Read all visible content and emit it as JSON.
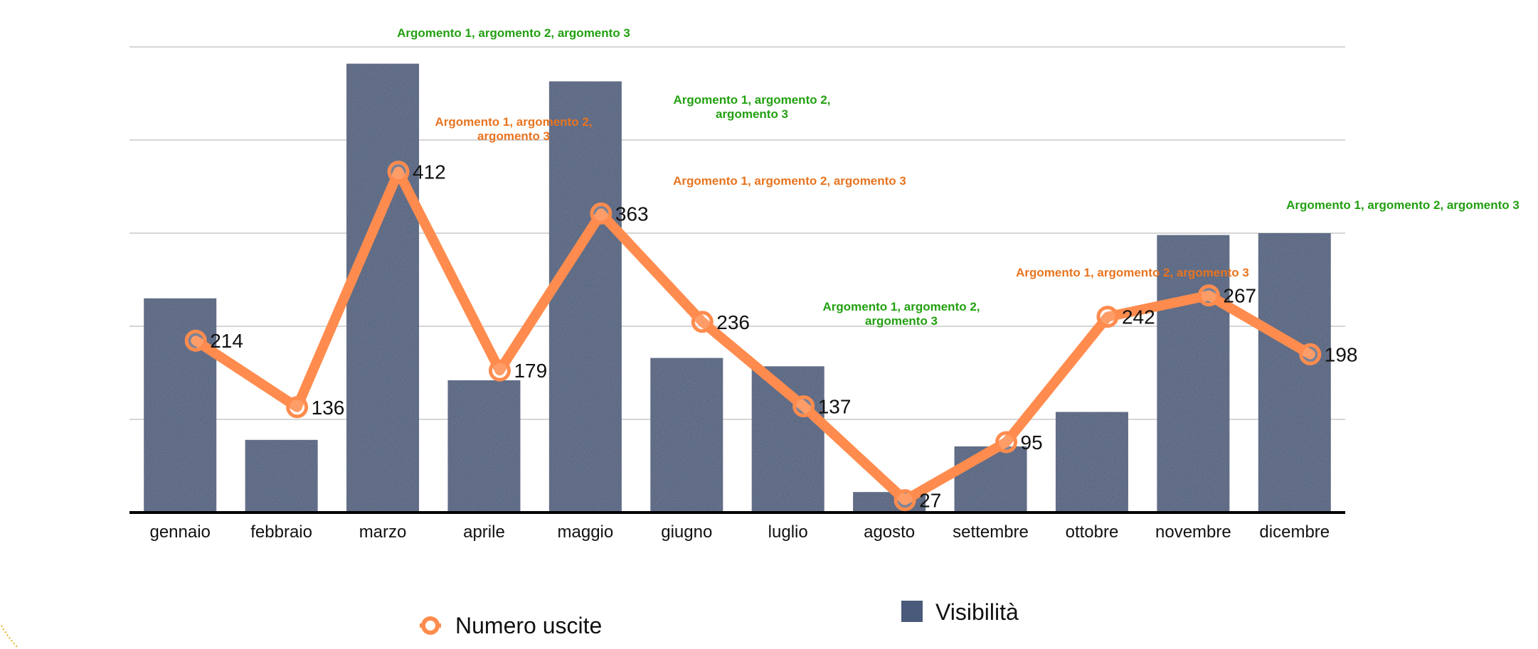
{
  "chart_data": {
    "type": "bar",
    "categories": [
      "gennaio",
      "febbraio",
      "marzo",
      "aprile",
      "maggio",
      "giugno",
      "luglio",
      "agosto",
      "settembre",
      "ottobre",
      "novembre",
      "dicembre"
    ],
    "series": [
      {
        "name": "Visibilità",
        "type": "bar",
        "values": [
          230,
          78,
          482,
          142,
          463,
          166,
          157,
          22,
          71,
          108,
          298,
          300
        ]
      },
      {
        "name": "Numero uscite",
        "type": "line",
        "values": [
          214,
          136,
          412,
          179,
          363,
          236,
          137,
          27,
          95,
          242,
          267,
          198
        ],
        "data_labels": [
          "214",
          "136",
          "412",
          "179",
          "363",
          "236",
          "137",
          "27",
          "95",
          "242",
          "267",
          "198"
        ]
      }
    ],
    "bar_ylim": [
      0,
      500
    ],
    "line_ylim": [
      20,
      445
    ],
    "grid": true,
    "legend_position": "bottom",
    "annotations": [
      {
        "text": "Argomento 1, argomento 2, argomento 3",
        "category": "marzo",
        "color": "green",
        "lines": [
          "Argomento 1, argomento 2, argomento 3"
        ]
      },
      {
        "text": "Argomento 1, argomento 2, argomento 3",
        "category": "marzo",
        "color": "orange",
        "lines": [
          "Argomento 1, argomento 2,",
          "argomento 3"
        ]
      },
      {
        "text": "Argomento 1, argomento 2, argomento 3",
        "category": "giugno",
        "color": "green",
        "lines": [
          "Argomento 1, argomento 2,",
          "argomento 3"
        ]
      },
      {
        "text": "Argomento 1, argomento 2, argomento 3",
        "category": "maggio",
        "color": "orange",
        "lines": [
          "Argomento 1, argomento 2, argomento 3"
        ]
      },
      {
        "text": "Argomento 1, argomento 2, argomento 3",
        "category": "agosto",
        "color": "green",
        "lines": [
          "Argomento 1, argomento 2,",
          "argomento 3"
        ]
      },
      {
        "text": "Argomento 1, argomento 2, argomento 3",
        "category": "ottobre",
        "color": "orange",
        "lines": [
          "Argomento 1, argomento 2, argomento 3"
        ]
      },
      {
        "text": "Argomento 1, argomento 2, argomento 3",
        "category": "dicembre",
        "color": "green",
        "lines": [
          "Argomento 1, argomento 2, argomento 3"
        ]
      }
    ],
    "colors": {
      "bar": "#4a5a7a",
      "line": "#ff8c4e",
      "annotation_green": "#22a010",
      "annotation_orange": "#e8741f",
      "grid": "#c8c8c8",
      "axis": "#000000"
    }
  }
}
